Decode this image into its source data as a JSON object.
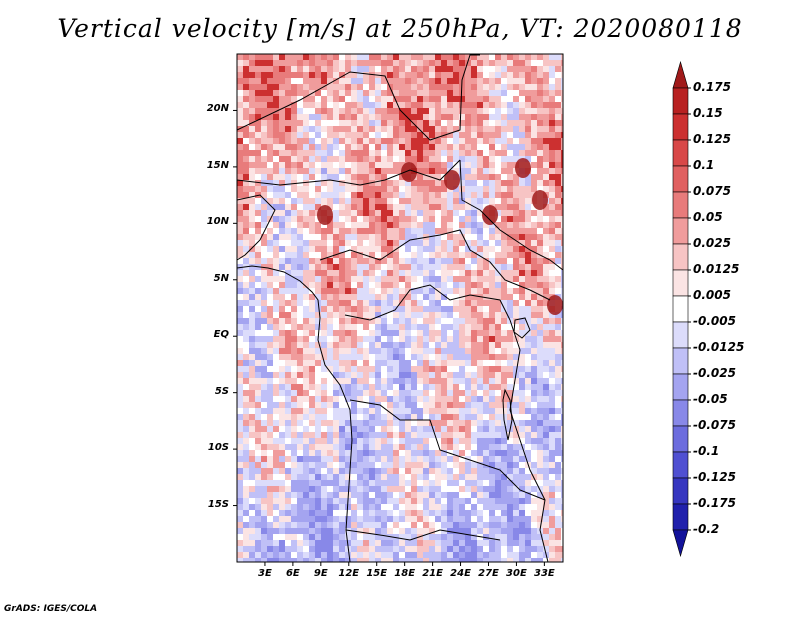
{
  "title": "Vertical velocity [m/s] at 250hPa, VT: 2020080118",
  "footer": "GrADS: IGES/COLA",
  "chart_data": {
    "type": "heatmap",
    "title": "Vertical velocity [m/s] at 250hPa, VT: 2020080118",
    "variable": "Vertical velocity",
    "units": "m/s",
    "level": "250hPa",
    "valid_time": "2020080118",
    "lon_range": [
      0,
      35
    ],
    "lat_range": [
      -20,
      25
    ],
    "lat_ticks": [
      {
        "value": 20,
        "label": "20N"
      },
      {
        "value": 15,
        "label": "15N"
      },
      {
        "value": 10,
        "label": "10N"
      },
      {
        "value": 5,
        "label": "5N"
      },
      {
        "value": 0,
        "label": "EQ"
      },
      {
        "value": -5,
        "label": "5S"
      },
      {
        "value": -10,
        "label": "10S"
      },
      {
        "value": -15,
        "label": "15S"
      }
    ],
    "lon_ticks": [
      {
        "value": 3,
        "label": "3E"
      },
      {
        "value": 6,
        "label": "6E"
      },
      {
        "value": 9,
        "label": "9E"
      },
      {
        "value": 12,
        "label": "12E"
      },
      {
        "value": 15,
        "label": "15E"
      },
      {
        "value": 18,
        "label": "18E"
      },
      {
        "value": 21,
        "label": "21E"
      },
      {
        "value": 24,
        "label": "24E"
      },
      {
        "value": 27,
        "label": "27E"
      },
      {
        "value": 30,
        "label": "30E"
      },
      {
        "value": 33,
        "label": "33E"
      }
    ],
    "colorbar": {
      "labels": [
        "0.175",
        "0.15",
        "0.125",
        "0.1",
        "0.075",
        "0.05",
        "0.025",
        "0.0125",
        "0.005",
        "-0.005",
        "-0.0125",
        "-0.025",
        "-0.05",
        "-0.075",
        "-0.1",
        "-0.125",
        "-0.175",
        "-0.2"
      ],
      "colors": [
        "#a01a1a",
        "#b82121",
        "#cc3030",
        "#d84848",
        "#e06060",
        "#e87b7b",
        "#f09c9c",
        "#f7c4c4",
        "#fbe4e4",
        "#ffffff",
        "#dcdcfb",
        "#c0c0f7",
        "#a4a4f0",
        "#8888e8",
        "#6c6cde",
        "#5050d2",
        "#3636c0",
        "#2020ac",
        "#12129a"
      ]
    }
  }
}
